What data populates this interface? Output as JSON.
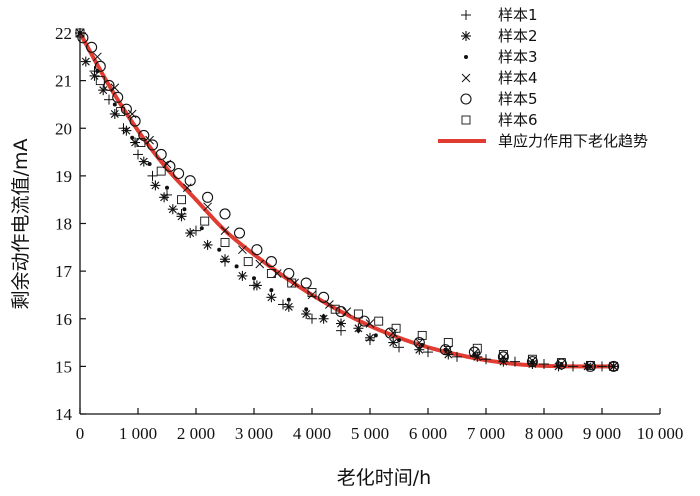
{
  "chart_data": {
    "type": "scatter",
    "xlabel": "老化时间/h",
    "ylabel": "剩余动作电流值/mA",
    "xlim": [
      0,
      10000
    ],
    "ylim": [
      14,
      22
    ],
    "x_ticks": [
      0,
      1000,
      2000,
      3000,
      4000,
      5000,
      6000,
      7000,
      8000,
      9000,
      10000
    ],
    "x_tick_labels": [
      "0",
      "1 000",
      "2 000",
      "3 000",
      "4 000",
      "5 000",
      "6 000",
      "7 000",
      "8 000",
      "9 000",
      "10 000"
    ],
    "y_ticks": [
      14,
      15,
      16,
      17,
      18,
      19,
      20,
      21,
      22
    ],
    "y_tick_labels": [
      "14",
      "15",
      "16",
      "17",
      "18",
      "19",
      "20",
      "21",
      "22"
    ],
    "grid": false,
    "legend_position": "top-right",
    "trend": {
      "name": "单应力作用下老化趋势",
      "color": "#e03c31",
      "x": [
        0,
        500,
        1000,
        1500,
        2000,
        2500,
        3000,
        3500,
        4000,
        4500,
        5000,
        5500,
        6000,
        6500,
        7000,
        7500,
        8000,
        8500,
        9200
      ],
      "y": [
        22.0,
        20.9,
        19.95,
        19.15,
        18.5,
        17.85,
        17.35,
        16.9,
        16.5,
        16.15,
        15.85,
        15.6,
        15.4,
        15.25,
        15.13,
        15.05,
        15.01,
        15.0,
        15.0
      ]
    },
    "series": [
      {
        "name": "样本1",
        "marker": "plus",
        "x": [
          0,
          250,
          500,
          750,
          1000,
          1250,
          1500,
          1750,
          2000,
          2500,
          3000,
          3500,
          4000,
          4500,
          5000,
          5500,
          6000,
          6500,
          7000,
          7500,
          8000,
          8500,
          9000
        ],
        "y": [
          22.0,
          21.2,
          20.6,
          20.0,
          19.45,
          19.0,
          18.6,
          18.2,
          17.85,
          17.2,
          16.7,
          16.3,
          16.0,
          15.75,
          15.55,
          15.4,
          15.3,
          15.2,
          15.15,
          15.1,
          15.05,
          15.0,
          15.0
        ]
      },
      {
        "name": "样本2",
        "marker": "asterisk",
        "x": [
          0,
          100,
          250,
          400,
          600,
          800,
          950,
          1100,
          1300,
          1450,
          1600,
          1750,
          1900,
          2200,
          2500,
          2800,
          3050,
          3300,
          3600,
          3900,
          4200,
          4500,
          4800,
          5000,
          5400,
          5850,
          6350,
          6850,
          7300,
          7800,
          8250,
          8750,
          9200
        ],
        "y": [
          22.0,
          21.4,
          21.1,
          20.8,
          20.3,
          19.95,
          19.7,
          19.3,
          18.8,
          18.55,
          18.3,
          18.15,
          17.8,
          17.55,
          17.25,
          16.9,
          16.7,
          16.45,
          16.25,
          16.1,
          16.0,
          15.9,
          15.8,
          15.6,
          15.5,
          15.35,
          15.25,
          15.2,
          15.1,
          15.05,
          15.0,
          15.0,
          15.0
        ]
      },
      {
        "name": "样本3",
        "marker": "dot",
        "x": [
          0,
          300,
          600,
          900,
          1200,
          1500,
          1800,
          2100,
          2400,
          2700,
          3000,
          3300,
          3600,
          3900,
          4200,
          4500,
          4800,
          5100,
          5500,
          5900,
          6300,
          6800,
          7300,
          7800,
          8300,
          8800,
          9200
        ],
        "y": [
          22.0,
          21.2,
          20.5,
          19.8,
          19.25,
          18.75,
          18.3,
          17.9,
          17.45,
          17.1,
          16.85,
          16.6,
          16.4,
          16.2,
          16.05,
          15.9,
          15.75,
          15.65,
          15.55,
          15.45,
          15.35,
          15.25,
          15.18,
          15.1,
          15.05,
          15.0,
          15.0
        ]
      },
      {
        "name": "样本4",
        "marker": "cross",
        "x": [
          0,
          300,
          600,
          900,
          1200,
          1500,
          1850,
          2200,
          2500,
          2800,
          3100,
          3400,
          3700,
          4000,
          4300,
          4600,
          5000,
          5400,
          5850,
          6350,
          6800,
          7300,
          7800,
          8300,
          8800,
          9200
        ],
        "y": [
          22.0,
          21.5,
          20.85,
          20.3,
          19.75,
          19.25,
          18.75,
          18.35,
          17.85,
          17.45,
          17.15,
          16.95,
          16.75,
          16.5,
          16.3,
          16.15,
          15.9,
          15.7,
          15.5,
          15.35,
          15.28,
          15.2,
          15.12,
          15.05,
          15.0,
          15.0
        ]
      },
      {
        "name": "样本5",
        "marker": "circle",
        "x": [
          50,
          200,
          350,
          500,
          650,
          800,
          950,
          1100,
          1250,
          1400,
          1550,
          1700,
          1900,
          2200,
          2500,
          2750,
          3050,
          3300,
          3600,
          3900,
          4200,
          4500,
          4900,
          5350,
          5850,
          6300,
          6800,
          7300,
          7800,
          8300,
          8800,
          9200
        ],
        "y": [
          21.9,
          21.7,
          21.3,
          20.9,
          20.65,
          20.4,
          20.15,
          19.85,
          19.65,
          19.45,
          19.2,
          19.05,
          18.9,
          18.55,
          18.2,
          17.8,
          17.45,
          17.2,
          16.95,
          16.75,
          16.45,
          16.15,
          15.95,
          15.7,
          15.5,
          15.35,
          15.3,
          15.2,
          15.1,
          15.05,
          15.0,
          15.0
        ]
      },
      {
        "name": "样本6",
        "marker": "square",
        "x": [
          0,
          350,
          700,
          1050,
          1400,
          1750,
          2150,
          2500,
          2900,
          3300,
          3650,
          4000,
          4400,
          4800,
          5150,
          5450,
          5900,
          6350,
          6850,
          7300,
          7800,
          8300,
          8800,
          9200
        ],
        "y": [
          22.0,
          21.0,
          20.35,
          19.7,
          19.1,
          18.5,
          18.05,
          17.6,
          17.2,
          16.95,
          16.75,
          16.55,
          16.2,
          16.1,
          15.95,
          15.8,
          15.65,
          15.5,
          15.38,
          15.25,
          15.15,
          15.08,
          15.02,
          15.0
        ]
      }
    ]
  }
}
